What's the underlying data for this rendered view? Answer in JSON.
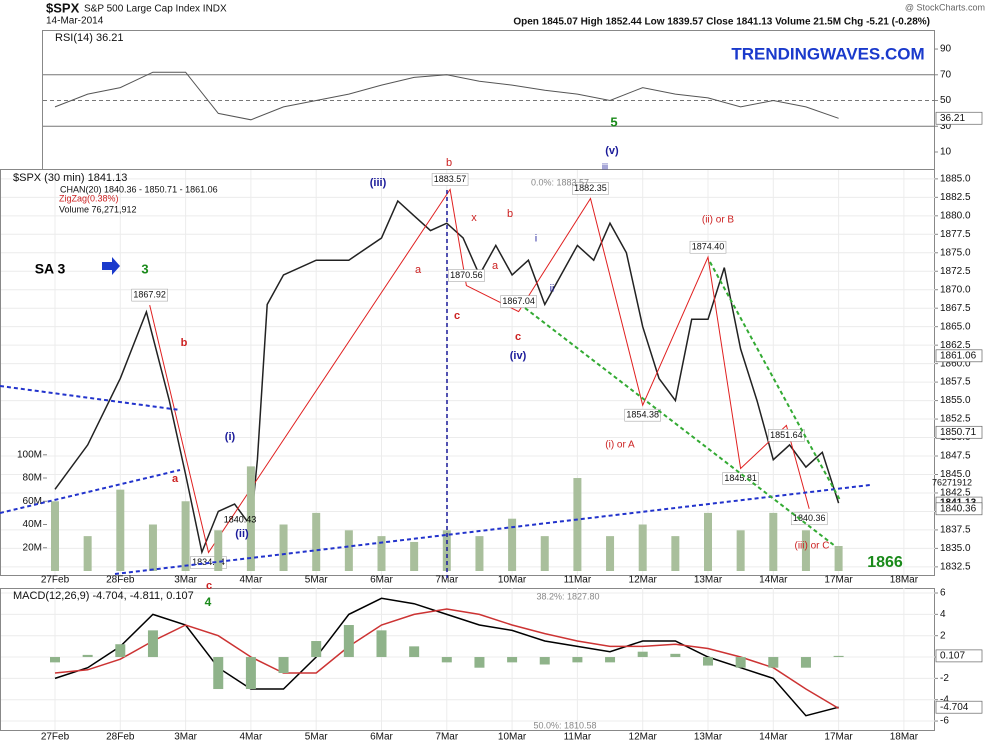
{
  "header": {
    "symbol": "$SPX",
    "name": "S&P 500 Large Cap Index INDX",
    "date": "14-Mar-2014",
    "source": "@ StockCharts.com",
    "quote": "Open 1845.07   High 1852.44   Low 1839.57   Close 1841.13   Volume 21.5M   Chg -5.21 (-0.28%)",
    "brand": "TRENDINGWAVES.COM",
    "channel": "CHAN(20) 1840.36 - 1850.71 - 1861.06",
    "volume_total": "76271912"
  },
  "annotations": [
    {
      "text": "SA 3",
      "color": "#000000"
    },
    {
      "text": "3",
      "color": "#1a8a1a"
    },
    {
      "text": "1866",
      "color": "#1a8a1a"
    },
    {
      "text": "(iii)",
      "color": "#1a1a9a"
    },
    {
      "text": "(iv)",
      "color": "#1a1a9a"
    },
    {
      "text": "(v)",
      "color": "#1a1a9a"
    },
    {
      "text": "iii",
      "color": "#1a1a9a"
    },
    {
      "text": "5",
      "color": "#1a8a1a"
    },
    {
      "text": "(i) or A",
      "color": "#cc2222"
    },
    {
      "text": "(ii) or B",
      "color": "#cc2222"
    },
    {
      "text": "(i)",
      "color": "#1a1a9a"
    },
    {
      "text": "(ii)",
      "color": "#1a1a9a"
    },
    {
      "text": "b",
      "color": "#cc2222"
    },
    {
      "text": "a",
      "color": "#cc2222"
    },
    {
      "text": "c",
      "color": "#cc2222"
    },
    {
      "text": "x",
      "color": "#cc2222"
    },
    {
      "text": "a",
      "color": "#cc2222"
    },
    {
      "text": "b",
      "color": "#cc2222"
    },
    {
      "text": "c",
      "color": "#cc2222"
    },
    {
      "text": "i",
      "color": "#1a1a9a"
    },
    {
      "text": "ii",
      "color": "#1a1a9a"
    },
    {
      "text": "a",
      "color": "#cc2222"
    },
    {
      "text": "b",
      "color": "#cc2222"
    },
    {
      "text": "c",
      "color": "#cc2222"
    },
    {
      "text": "4",
      "color": "#1a8a1a"
    },
    {
      "text": "(iii) or C",
      "color": "#cc2222"
    },
    {
      "text": "1840.43",
      "color": "#000000"
    },
    {
      "text": "0.0%: 1883.57",
      "color": "#888888"
    },
    {
      "text": "38.2%: 1827.80",
      "color": "#888888"
    },
    {
      "text": "50.0%: 1810.58",
      "color": "#888888"
    }
  ],
  "chart_data": [
    {
      "type": "line",
      "title": "RSI(14) 36.21",
      "x": [
        0,
        0.5,
        1,
        1.5,
        2,
        2.5,
        3,
        3.5,
        4,
        4.5,
        5,
        5.5,
        6,
        6.5,
        7,
        7.5,
        8,
        8.5,
        9,
        9.5,
        10,
        10.5,
        11,
        11.5,
        12
      ],
      "values": [
        45,
        55,
        60,
        72,
        72,
        40,
        35,
        45,
        50,
        55,
        62,
        68,
        70,
        65,
        62,
        58,
        55,
        50,
        60,
        55,
        52,
        45,
        50,
        45,
        36.21
      ],
      "color": "#555555",
      "ylim": [
        -4,
        104.8
      ],
      "yticks": [
        10,
        30,
        50,
        70,
        90
      ],
      "reference_lines": [
        30,
        50,
        70
      ],
      "current_values": [
        36.21
      ]
    },
    {
      "type": "line",
      "title": "$SPX (30 min) 1841.13",
      "x": [
        0,
        0.5,
        1,
        1.4,
        1.75,
        2,
        2.25,
        2.5,
        2.75,
        3,
        3.1,
        3.25,
        3.5,
        4,
        4.5,
        5,
        5.25,
        5.5,
        5.75,
        6,
        6.25,
        6.5,
        6.75,
        7,
        7.25,
        7.5,
        7.75,
        8,
        8.25,
        8.5,
        8.75,
        9,
        9.25,
        9.5,
        9.75,
        10,
        10.25,
        10.5,
        10.75,
        11,
        11.25,
        11.5,
        11.75,
        12
      ],
      "series": [
        {
          "name": "$SPX (30 min) 1841.13",
          "color": "#222222",
          "values": [
            1843,
            1849,
            1858,
            1867,
            1855,
            1845,
            1834.5,
            1840,
            1841,
            1838,
            1847,
            1868,
            1872,
            1874,
            1874,
            1877,
            1882,
            1880,
            1878,
            1879,
            1877,
            1872,
            1876,
            1872,
            1874,
            1868,
            1872,
            1876,
            1874,
            1879,
            1875,
            1865,
            1858,
            1855,
            1866,
            1866,
            1873,
            1862,
            1855,
            1847,
            1849,
            1846,
            1848,
            1841.13
          ]
        },
        {
          "name": "ZigZag(0.38%)",
          "color": "#e02020",
          "x": [
            1.45,
            2.35,
            6.05,
            6.3,
            7.1,
            8.2,
            9.0,
            10.0,
            10.5,
            11.2,
            11.55
          ],
          "values": [
            1867.92,
            1834.44,
            1883.57,
            1870.56,
            1867.04,
            1882.35,
            1854.38,
            1874.4,
            1845.81,
            1851.64,
            1840.36
          ],
          "value_labels": [
            "1867.92",
            "1834.44",
            "1883.57",
            "1870.56",
            "1867.04",
            "1882.35",
            "1854.38",
            "1874.40",
            "1845.81",
            "1851.64",
            "1840.36"
          ]
        },
        {
          "name": "Volume 76,271,912",
          "color": "#a9bf9c",
          "axis": "y2",
          "x": [
            0,
            0.5,
            1,
            1.5,
            2,
            2.5,
            3,
            3.5,
            4,
            4.5,
            5,
            5.5,
            6,
            6.5,
            7,
            7.5,
            8,
            8.5,
            9,
            9.5,
            10,
            10.5,
            11,
            11.5,
            12
          ],
          "values": [
            60000000,
            30000000,
            70000000,
            40000000,
            60000000,
            35000000,
            90000000,
            40000000,
            50000000,
            35000000,
            30000000,
            25000000,
            35000000,
            30000000,
            45000000,
            30000000,
            80000000,
            30000000,
            40000000,
            30000000,
            50000000,
            35000000,
            50000000,
            35000000,
            21500000
          ]
        }
      ],
      "ylim": [
        1831.4,
        1886.2
      ],
      "yticks": [
        {
          "value": 1832.5,
          "label": "1832.5"
        },
        {
          "value": 1835,
          "label": "1835.0"
        },
        {
          "value": 1837.5,
          "label": "1837.5"
        },
        {
          "value": 1840,
          "label": "1840.0"
        },
        {
          "value": 1842.5,
          "label": "1842.5"
        },
        {
          "value": 1845,
          "label": "1845.0"
        },
        {
          "value": 1847.5,
          "label": "1847.5"
        },
        {
          "value": 1850,
          "label": "1850.0"
        },
        {
          "value": 1852.5,
          "label": "1852.5"
        },
        {
          "value": 1855,
          "label": "1855.0"
        },
        {
          "value": 1857.5,
          "label": "1857.5"
        },
        {
          "value": 1860,
          "label": "1860.0"
        },
        {
          "value": 1862.5,
          "label": "1862.5"
        },
        {
          "value": 1865,
          "label": "1865.0"
        },
        {
          "value": 1867.5,
          "label": "1867.5"
        },
        {
          "value": 1870,
          "label": "1870.0"
        },
        {
          "value": 1872.5,
          "label": "1872.5"
        },
        {
          "value": 1875,
          "label": "1875.0"
        },
        {
          "value": 1877.5,
          "label": "1877.5"
        },
        {
          "value": 1880,
          "label": "1880.0"
        },
        {
          "value": 1882.5,
          "label": "1882.5"
        },
        {
          "value": 1885,
          "label": "1885.0"
        }
      ],
      "y2lim": [
        0,
        345000000
      ],
      "y2ticks": [
        {
          "value": 20000000,
          "label": "20M"
        },
        {
          "value": 40000000,
          "label": "40M"
        },
        {
          "value": 60000000,
          "label": "60M"
        },
        {
          "value": 80000000,
          "label": "80M"
        },
        {
          "value": 100000000,
          "label": "100M"
        }
      ],
      "xlim": [
        -0.4,
        13.2
      ],
      "xticks": [
        {
          "value": 0,
          "label": "27Feb"
        },
        {
          "value": 1,
          "label": "28Feb"
        },
        {
          "value": 2,
          "label": "3Mar"
        },
        {
          "value": 3,
          "label": "4Mar"
        },
        {
          "value": 4,
          "label": "5Mar"
        },
        {
          "value": 5,
          "label": "6Mar"
        },
        {
          "value": 6,
          "label": "7Mar"
        },
        {
          "value": 7,
          "label": "10Mar"
        },
        {
          "value": 8,
          "label": "11Mar"
        },
        {
          "value": 9,
          "label": "12Mar"
        },
        {
          "value": 10,
          "label": "13Mar"
        },
        {
          "value": 11,
          "label": "14Mar"
        },
        {
          "value": 12,
          "label": "17Mar"
        },
        {
          "value": 13,
          "label": "18Mar"
        }
      ],
      "grid": true,
      "current_values": [
        1861.06,
        1850.71,
        1841.13,
        1840.36
      ]
    },
    {
      "type": "line",
      "title": "MACD(12,26,9) -4.704, -4.811, 0.107",
      "x": [
        0,
        0.5,
        1,
        1.5,
        2,
        2.5,
        3,
        3.5,
        4,
        4.5,
        5,
        5.5,
        6,
        6.5,
        7,
        7.5,
        8,
        8.5,
        9,
        9.5,
        10,
        10.5,
        11,
        11.5,
        12
      ],
      "series": [
        {
          "name": "MACD",
          "color": "#000000",
          "values": [
            -2,
            -1,
            1,
            4,
            3,
            -1,
            -3,
            -3,
            0,
            4,
            5.5,
            5,
            4,
            3,
            2.5,
            1.5,
            1,
            0.5,
            1.5,
            1.5,
            0,
            -1,
            -2,
            -5.5,
            -4.704
          ]
        },
        {
          "name": "Signal",
          "color": "#cc3333",
          "values": [
            -1.5,
            -1.2,
            -0.2,
            1.5,
            3,
            2,
            0,
            -1.5,
            -1.5,
            1,
            3,
            4,
            4.5,
            4,
            3,
            2.2,
            1.5,
            1,
            1,
            1.2,
            0.8,
            0,
            -1,
            -3,
            -4.811
          ]
        },
        {
          "name": "Histogram",
          "color": "#8fb38a",
          "values": [
            -0.5,
            0.2,
            1.2,
            2.5,
            0,
            -3,
            -3,
            -1.5,
            1.5,
            3,
            2.5,
            1,
            -0.5,
            -1,
            -0.5,
            -0.7,
            -0.5,
            -0.5,
            0.5,
            0.3,
            -0.8,
            -1,
            -1,
            -1,
            0.107
          ]
        }
      ],
      "ylim": [
        -6.84,
        6.47
      ],
      "yticks": [
        -6,
        -4,
        -2,
        0,
        2,
        4,
        6
      ],
      "grid": true,
      "current_values": [
        0.107,
        -4.704
      ]
    }
  ]
}
